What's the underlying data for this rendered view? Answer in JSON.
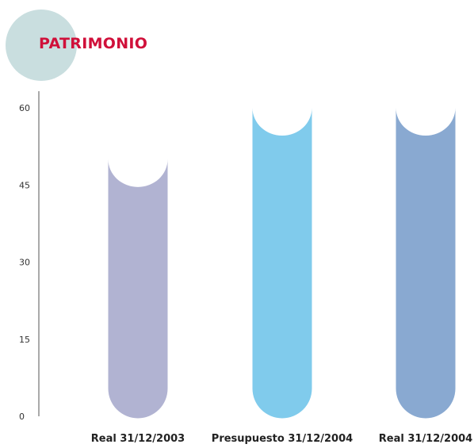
{
  "colors": {
    "title_circle": "#c9dedf",
    "title_text": "#d0103a",
    "axis": "#555555"
  },
  "chart_data": {
    "type": "bar",
    "title": "PATRIMONIO",
    "categories": [
      "Real 31/12/2003",
      "Presupuesto 31/12/2004",
      "Real 31/12/2004"
    ],
    "values": [
      50,
      60,
      60
    ],
    "bar_colors": [
      "#b1b3d2",
      "#80cbec",
      "#89a9d1"
    ],
    "ylim": [
      0,
      60
    ],
    "yticks": [
      0,
      15,
      30,
      45,
      60
    ],
    "xlabel": "",
    "ylabel": "",
    "grid": false
  }
}
